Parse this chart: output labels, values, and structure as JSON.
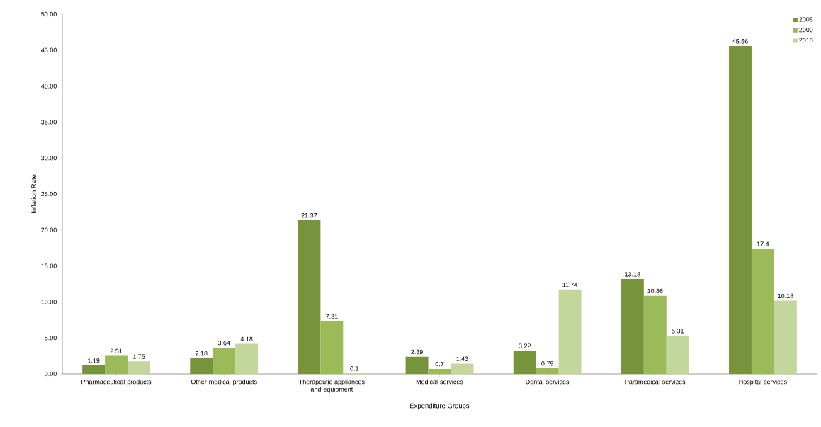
{
  "chart_data": {
    "type": "bar",
    "xlabel": "Expenditure Groups",
    "ylabel": "Inflation Rate",
    "categories": [
      "Pharmaceutical products",
      "Other medical products",
      "Therapeutic appliances and equipment",
      "Medical services",
      "Dental services",
      "Paramedical services",
      "Hospital services"
    ],
    "series": [
      {
        "name": "2008",
        "color": "#77933c",
        "values": [
          1.19,
          2.18,
          21.37,
          2.39,
          3.22,
          13.18,
          45.56
        ]
      },
      {
        "name": "2009",
        "color": "#9bbb59",
        "values": [
          2.51,
          3.64,
          7.31,
          0.7,
          0.79,
          10.86,
          17.4
        ]
      },
      {
        "name": "2010",
        "color": "#c3d69b",
        "values": [
          1.75,
          4.18,
          0.1,
          1.43,
          11.74,
          5.31,
          10.18
        ]
      }
    ],
    "ylim": [
      0,
      50
    ],
    "yticks": [
      {
        "value": 0,
        "label": "0.00"
      },
      {
        "value": 5,
        "label": "5.00"
      },
      {
        "value": 10,
        "label": "10.00"
      },
      {
        "value": 15,
        "label": "15.00"
      },
      {
        "value": 20,
        "label": "20.00"
      },
      {
        "value": 25,
        "label": "25.00"
      },
      {
        "value": 30,
        "label": "30.00"
      },
      {
        "value": 35,
        "label": "35.00"
      },
      {
        "value": 40,
        "label": "40.00"
      },
      {
        "value": 45,
        "label": "45.00"
      },
      {
        "value": 50,
        "label": "50.00"
      }
    ],
    "data_labels": true,
    "legend": "top right",
    "grid": false
  }
}
